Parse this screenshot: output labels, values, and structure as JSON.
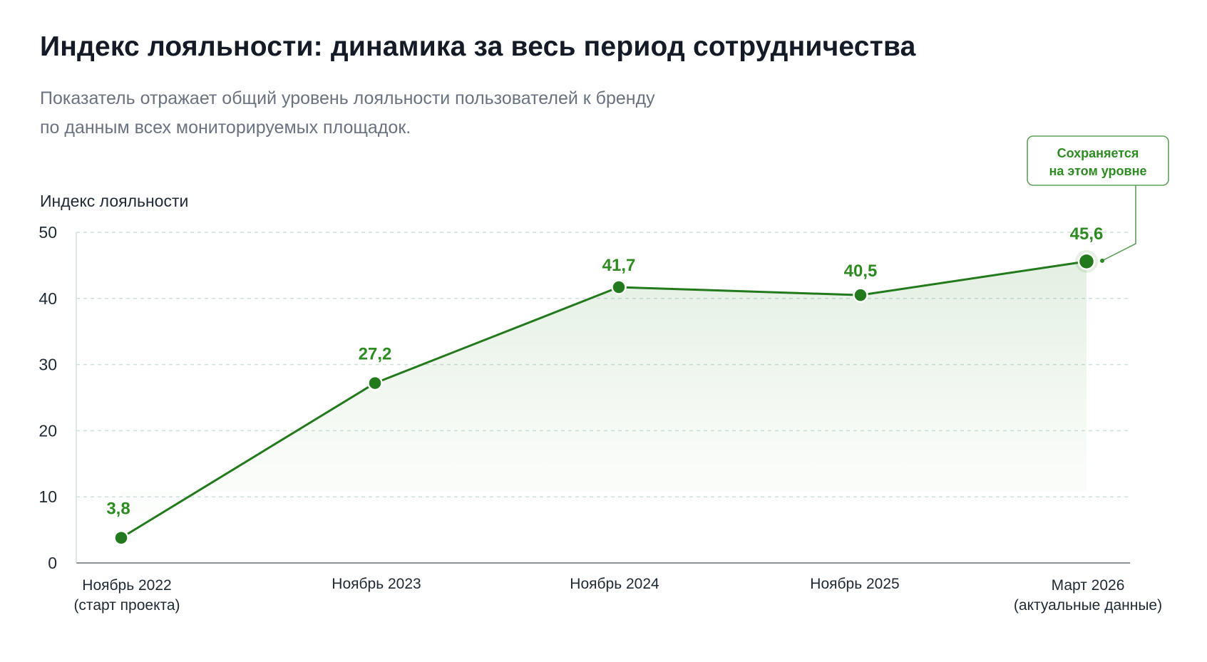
{
  "chart_data": {
    "type": "area",
    "title": "Индекс лояльности: динамика за весь период сотрудничества",
    "subtitle_lines": [
      "Показатель отражает общий уровень лояльности пользователей к бренду",
      "по данным всех мониторируемых площадок."
    ],
    "ylabel": "Индекс лояльности",
    "xlabel": "",
    "ylim": [
      0,
      50
    ],
    "yticks": [
      0,
      10,
      20,
      30,
      40,
      50
    ],
    "grid": true,
    "categories": [
      [
        "Ноябрь 2022",
        "(старт проекта)"
      ],
      [
        "Ноябрь 2023"
      ],
      [
        "Ноябрь 2024"
      ],
      [
        "Ноябрь 2025"
      ],
      [
        "Март 2026",
        "(актуальные данные)"
      ]
    ],
    "x_positions_months": [
      0,
      12,
      24,
      36,
      40
    ],
    "values": [
      3.8,
      27.2,
      41.7,
      40.5,
      45.6
    ],
    "data_labels": [
      "3,8",
      "27,2",
      "41,7",
      "40,5",
      "45,6"
    ],
    "annotation": {
      "point_index": 4,
      "lines": [
        "Сохраняется",
        "на этом уровне"
      ]
    },
    "colors": {
      "line": "#237a1c",
      "label": "#2e8b22",
      "grid": "#cfe0e0",
      "axis": "#1f2933",
      "callout_border": "#5fa05a"
    }
  }
}
